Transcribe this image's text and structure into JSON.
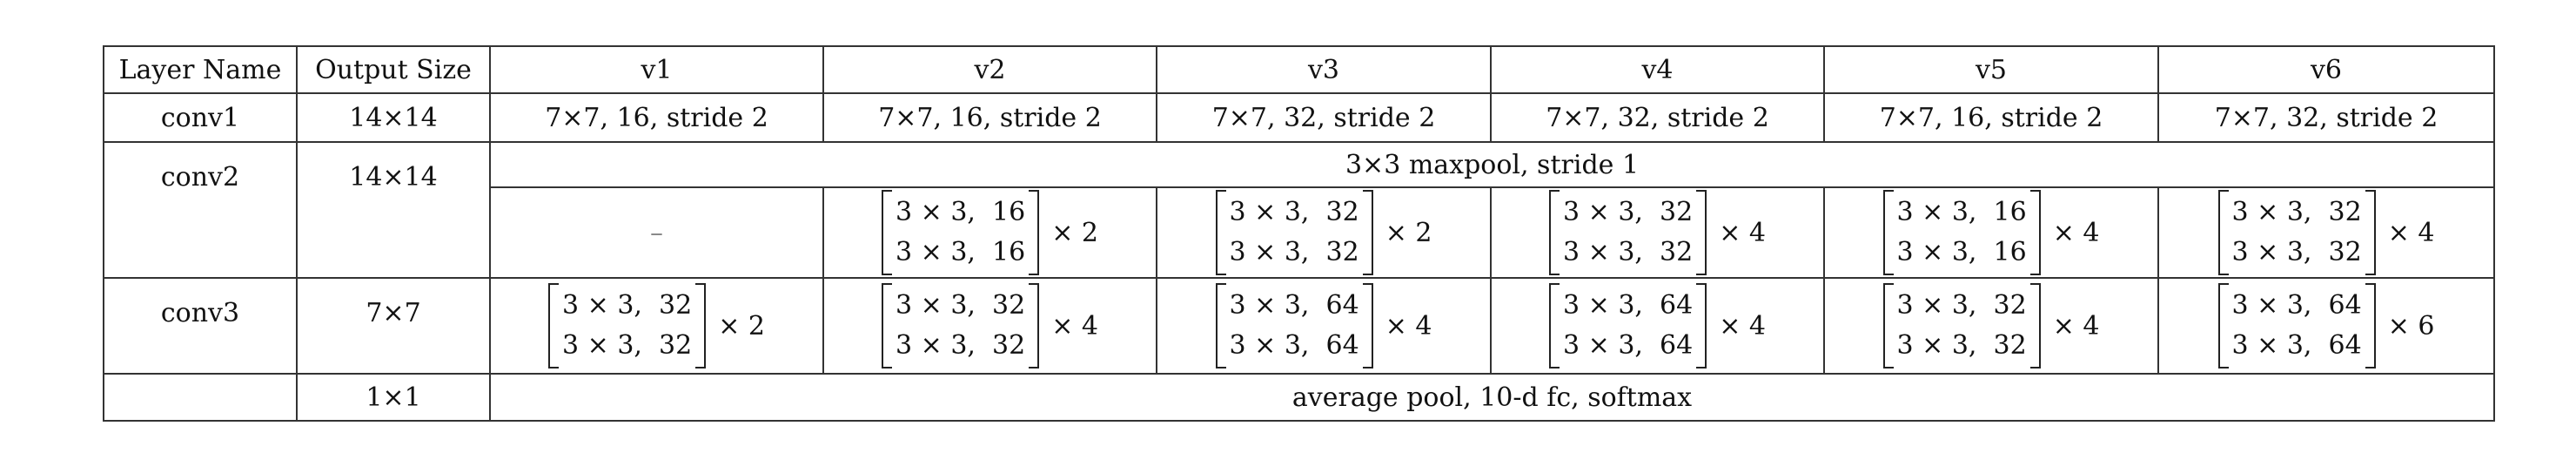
{
  "headers": [
    "Layer Name",
    "Output Size",
    "v1",
    "v2",
    "v3",
    "v4",
    "v5",
    "v6"
  ],
  "conv1": {
    "name": "conv1",
    "size": "14×14",
    "cells": [
      "7×7, 16, stride 2",
      "7×7, 16, stride 2",
      "7×7, 32, stride 2",
      "7×7, 32, stride 2",
      "7×7, 16, stride 2",
      "7×7, 32, stride 2"
    ]
  },
  "conv2": {
    "name": "conv2",
    "size": "14×14",
    "maxpool": "3×3 maxpool, stride 1",
    "v1": "–",
    "blocks": [
      {
        "l1": "3 × 3,  16",
        "l2": "3 × 3,  16",
        "mult": "× 2"
      },
      {
        "l1": "3 × 3,  32",
        "l2": "3 × 3,  32",
        "mult": "× 2"
      },
      {
        "l1": "3 × 3,  32",
        "l2": "3 × 3,  32",
        "mult": "× 4"
      },
      {
        "l1": "3 × 3,  16",
        "l2": "3 × 3,  16",
        "mult": "× 4"
      },
      {
        "l1": "3 × 3,  32",
        "l2": "3 × 3,  32",
        "mult": "× 4"
      }
    ]
  },
  "conv3": {
    "name": "conv3",
    "size": "7×7",
    "blocks": [
      {
        "l1": "3 × 3,  32",
        "l2": "3 × 3,  32",
        "mult": "× 2"
      },
      {
        "l1": "3 × 3,  32",
        "l2": "3 × 3,  32",
        "mult": "× 4"
      },
      {
        "l1": "3 × 3,  64",
        "l2": "3 × 3,  64",
        "mult": "× 4"
      },
      {
        "l1": "3 × 3,  64",
        "l2": "3 × 3,  64",
        "mult": "× 4"
      },
      {
        "l1": "3 × 3,  32",
        "l2": "3 × 3,  32",
        "mult": "× 4"
      },
      {
        "l1": "3 × 3,  64",
        "l2": "3 × 3,  64",
        "mult": "× 6"
      }
    ]
  },
  "final": {
    "name": "",
    "size": "1×1",
    "text": "average pool, 10-d fc, softmax"
  }
}
